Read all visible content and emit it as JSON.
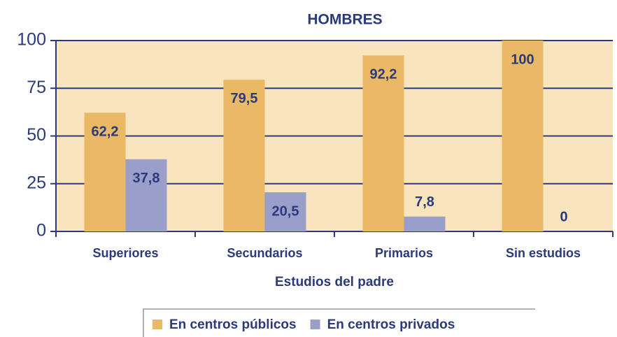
{
  "chart_data": {
    "type": "bar",
    "title": "HOMBRES",
    "x_label": "Estudios del padre",
    "categories": [
      "Superiores",
      "Secundarios",
      "Primarios",
      "Sin estudios"
    ],
    "series": [
      {
        "name": "En centros públicos",
        "color": "#e9b966",
        "values": [
          62.2,
          79.5,
          92.2,
          100
        ],
        "value_labels": [
          "62,2",
          "79,5",
          "92,2",
          "100"
        ]
      },
      {
        "name": "En centros privados",
        "color": "#9a9fc9",
        "values": [
          37.8,
          20.5,
          7.8,
          0
        ],
        "value_labels": [
          "37,8",
          "20,5",
          "7,8",
          "0"
        ]
      }
    ],
    "ylim": [
      0,
      100
    ],
    "yticks": [
      0,
      25,
      50,
      75,
      100
    ],
    "grid": true,
    "background": "#f8e4bd",
    "legend": "bottom"
  }
}
